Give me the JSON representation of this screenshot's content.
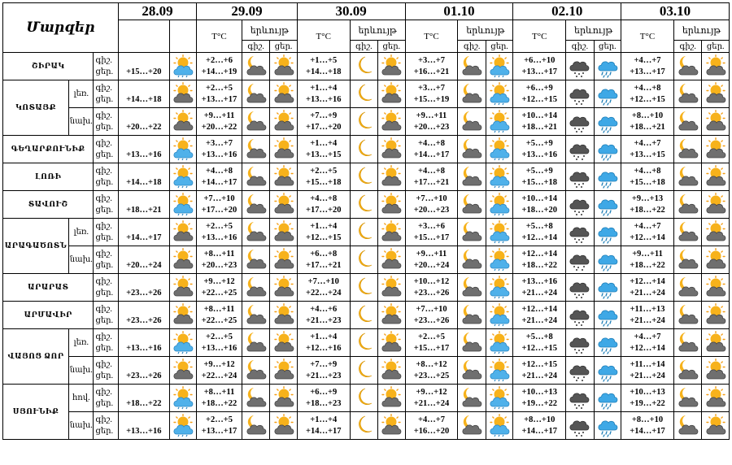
{
  "header": {
    "region_title": "Մարզեր",
    "dates": [
      "28.09",
      "29.09",
      "30.09",
      "01.10",
      "02.10",
      "03.10"
    ],
    "temp_label": "T°C",
    "phen_label": "երևույթ",
    "night_label": "գիշ.",
    "day_label": "ցեր."
  },
  "row_labels": {
    "night": "գիշ.",
    "day": "ցեր."
  },
  "regions": [
    {
      "name": "ՇԻՐԱԿ",
      "rows": [
        {
          "sub": "",
          "d0": {
            "temp": "+15…+20",
            "icon": "sun-cloud-rain-icon"
          },
          "days": [
            {
              "night": "+2…+6",
              "day": "+14…+19",
              "icon_night": "moon-cloud-icon",
              "icon_day": "sun-cloud-icon"
            },
            {
              "night": "+1…+5",
              "day": "+14…+18",
              "icon_night": "moon-icon",
              "icon_day": "sun-cloud-icon"
            },
            {
              "night": "+3…+7",
              "day": "+16…+21",
              "icon_night": "moon-cloud-icon",
              "icon_day": "sun-cloud-rain-icon"
            },
            {
              "night": "+6…+10",
              "day": "+13…+17",
              "icon_night": "cloud-rain-icon",
              "icon_day": "cloud-rain-blue-icon"
            },
            {
              "night": "+4…+7",
              "day": "+13…+17",
              "icon_night": "moon-cloud-icon",
              "icon_day": "sun-cloud-icon"
            }
          ]
        }
      ]
    },
    {
      "name": "ԿՈՏԱՅՔ",
      "rows": [
        {
          "sub": "լեռ.",
          "d0": {
            "temp": "+14…+18",
            "icon": "sun-cloud-icon"
          },
          "days": [
            {
              "night": "+2…+5",
              "day": "+13…+17",
              "icon_night": "moon-cloud-icon",
              "icon_day": "sun-cloud-icon"
            },
            {
              "night": "+1…+4",
              "day": "+13…+16",
              "icon_night": "moon-icon",
              "icon_day": "sun-cloud-icon"
            },
            {
              "night": "+3…+7",
              "day": "+15…+19",
              "icon_night": "moon-cloud-icon",
              "icon_day": "sun-cloud-rain-icon"
            },
            {
              "night": "+6…+9",
              "day": "+12…+15",
              "icon_night": "cloud-rain-icon",
              "icon_day": "cloud-rain-blue-icon"
            },
            {
              "night": "+4…+8",
              "day": "+12…+15",
              "icon_night": "moon-cloud-icon",
              "icon_day": "sun-cloud-icon"
            }
          ]
        },
        {
          "sub": "նախ.",
          "d0": {
            "temp": "+20…+22",
            "icon": "sun-cloud-icon"
          },
          "days": [
            {
              "night": "+9…+11",
              "day": "+20…+22",
              "icon_night": "moon-cloud-icon",
              "icon_day": "sun-cloud-icon"
            },
            {
              "night": "+7…+9",
              "day": "+17…+20",
              "icon_night": "moon-icon",
              "icon_day": "sun-cloud-icon"
            },
            {
              "night": "+9…+11",
              "day": "+20…+23",
              "icon_night": "moon-cloud-icon",
              "icon_day": "sun-cloud-rain-icon"
            },
            {
              "night": "+10…+14",
              "day": "+18…+21",
              "icon_night": "cloud-rain-icon",
              "icon_day": "cloud-rain-blue-icon"
            },
            {
              "night": "+8…+10",
              "day": "+18…+21",
              "icon_night": "moon-cloud-icon",
              "icon_day": "sun-cloud-icon"
            }
          ]
        }
      ]
    },
    {
      "name": "ԳԵՂԱՐՔՈՒՆԻՔ",
      "rows": [
        {
          "sub": "",
          "d0": {
            "temp": "+13…+16",
            "icon": "sun-cloud-rain-icon"
          },
          "days": [
            {
              "night": "+3…+7",
              "day": "+13…+16",
              "icon_night": "moon-cloud-icon",
              "icon_day": "sun-cloud-icon"
            },
            {
              "night": "+1…+4",
              "day": "+13…+15",
              "icon_night": "moon-icon",
              "icon_day": "sun-cloud-icon"
            },
            {
              "night": "+4…+8",
              "day": "+14…+17",
              "icon_night": "moon-cloud-icon",
              "icon_day": "sun-cloud-rain-icon"
            },
            {
              "night": "+5…+9",
              "day": "+13…+16",
              "icon_night": "cloud-storm-icon",
              "icon_day": "cloud-rain-blue-icon"
            },
            {
              "night": "+4…+7",
              "day": "+13…+15",
              "icon_night": "moon-cloud-icon",
              "icon_day": "sun-cloud-icon"
            }
          ]
        }
      ]
    },
    {
      "name": "ԼՈՌԻ",
      "rows": [
        {
          "sub": "",
          "d0": {
            "temp": "+14…+18",
            "icon": "sun-cloud-rain-icon"
          },
          "days": [
            {
              "night": "+4…+8",
              "day": "+14…+17",
              "icon_night": "moon-cloud-icon",
              "icon_day": "sun-cloud-icon"
            },
            {
              "night": "+2…+5",
              "day": "+15…+18",
              "icon_night": "moon-icon",
              "icon_day": "sun-cloud-icon"
            },
            {
              "night": "+4…+8",
              "day": "+17…+21",
              "icon_night": "moon-cloud-icon",
              "icon_day": "sun-cloud-rain-icon"
            },
            {
              "night": "+5…+9",
              "day": "+15…+18",
              "icon_night": "cloud-rain-icon",
              "icon_day": "cloud-rain-blue-icon"
            },
            {
              "night": "+4…+8",
              "day": "+15…+18",
              "icon_night": "moon-cloud-icon",
              "icon_day": "sun-cloud-icon"
            }
          ]
        }
      ]
    },
    {
      "name": "ՏԱՎՈՒՇ",
      "rows": [
        {
          "sub": "",
          "d0": {
            "temp": "+18…+21",
            "icon": "sun-cloud-rain-icon"
          },
          "days": [
            {
              "night": "+7…+10",
              "day": "+17…+20",
              "icon_night": "moon-cloud-icon",
              "icon_day": "sun-cloud-icon"
            },
            {
              "night": "+4…+8",
              "day": "+17…+20",
              "icon_night": "moon-icon",
              "icon_day": "sun-cloud-icon"
            },
            {
              "night": "+7…+10",
              "day": "+20…+23",
              "icon_night": "moon-cloud-icon",
              "icon_day": "sun-cloud-rain-icon"
            },
            {
              "night": "+10…+14",
              "day": "+18…+20",
              "icon_night": "cloud-rain-icon",
              "icon_day": "cloud-rain-blue-icon"
            },
            {
              "night": "+9…+13",
              "day": "+18…+22",
              "icon_night": "moon-cloud-icon",
              "icon_day": "sun-cloud-icon"
            }
          ]
        }
      ]
    },
    {
      "name": "ԱՐԱԳԱԾՈՏՆ",
      "rows": [
        {
          "sub": "լեռ.",
          "d0": {
            "temp": "+14…+17",
            "icon": "sun-cloud-icon"
          },
          "days": [
            {
              "night": "+2…+5",
              "day": "+13…+16",
              "icon_night": "moon-cloud-icon",
              "icon_day": "sun-cloud-icon"
            },
            {
              "night": "+1…+4",
              "day": "+12…+15",
              "icon_night": "moon-icon",
              "icon_day": "sun-cloud-icon"
            },
            {
              "night": "+3…+6",
              "day": "+15…+17",
              "icon_night": "moon-cloud-icon",
              "icon_day": "sun-cloud-rain-icon"
            },
            {
              "night": "+5…+8",
              "day": "+12…+14",
              "icon_night": "cloud-rain-icon",
              "icon_day": "cloud-rain-blue-icon"
            },
            {
              "night": "+4…+7",
              "day": "+12…+14",
              "icon_night": "moon-cloud-icon",
              "icon_day": "sun-cloud-icon"
            }
          ]
        },
        {
          "sub": "նախ.",
          "d0": {
            "temp": "+20…+24",
            "icon": "sun-cloud-icon"
          },
          "days": [
            {
              "night": "+8…+11",
              "day": "+20…+23",
              "icon_night": "moon-cloud-icon",
              "icon_day": "sun-cloud-icon"
            },
            {
              "night": "+6…+8",
              "day": "+17…+21",
              "icon_night": "moon-icon",
              "icon_day": "sun-cloud-icon"
            },
            {
              "night": "+9…+11",
              "day": "+20…+24",
              "icon_night": "moon-cloud-icon",
              "icon_day": "sun-cloud-rain-icon"
            },
            {
              "night": "+12…+14",
              "day": "+18…+22",
              "icon_night": "cloud-storm-icon",
              "icon_day": "cloud-rain-blue-icon"
            },
            {
              "night": "+9…+11",
              "day": "+18…+22",
              "icon_night": "moon-cloud-icon",
              "icon_day": "sun-cloud-icon"
            }
          ]
        }
      ]
    },
    {
      "name": "ԱՐԱՐԱՏ",
      "rows": [
        {
          "sub": "",
          "d0": {
            "temp": "+23…+26",
            "icon": "sun-cloud-icon"
          },
          "days": [
            {
              "night": "+9…+12",
              "day": "+22…+25",
              "icon_night": "moon-cloud-icon",
              "icon_day": "sun-cloud-icon"
            },
            {
              "night": "+7…+10",
              "day": "+22…+24",
              "icon_night": "moon-icon",
              "icon_day": "sun-cloud-icon"
            },
            {
              "night": "+10…+12",
              "day": "+23…+26",
              "icon_night": "moon-cloud-icon",
              "icon_day": "sun-cloud-rain-icon"
            },
            {
              "night": "+13…+16",
              "day": "+21…+24",
              "icon_night": "cloud-rain-icon",
              "icon_day": "cloud-rain-blue-icon"
            },
            {
              "night": "+12…+14",
              "day": "+21…+24",
              "icon_night": "moon-cloud-icon",
              "icon_day": "sun-cloud-icon"
            }
          ]
        }
      ]
    },
    {
      "name": "ԱՐՄԱՎԻՐ",
      "rows": [
        {
          "sub": "",
          "d0": {
            "temp": "+23…+26",
            "icon": "sun-cloud-icon"
          },
          "days": [
            {
              "night": "+8…+11",
              "day": "+22…+25",
              "icon_night": "moon-cloud-icon",
              "icon_day": "sun-cloud-icon"
            },
            {
              "night": "+4…+6",
              "day": "+21…+23",
              "icon_night": "moon-icon",
              "icon_day": "sun-cloud-icon"
            },
            {
              "night": "+7…+10",
              "day": "+23…+26",
              "icon_night": "moon-cloud-icon",
              "icon_day": "sun-cloud-rain-icon"
            },
            {
              "night": "+12…+14",
              "day": "+21…+24",
              "icon_night": "cloud-rain-icon",
              "icon_day": "cloud-rain-blue-icon"
            },
            {
              "night": "+11…+13",
              "day": "+21…+24",
              "icon_night": "moon-cloud-icon",
              "icon_day": "sun-cloud-icon"
            }
          ]
        }
      ]
    },
    {
      "name": "ՎԱՅՈՑ ՁՈՐ",
      "rows": [
        {
          "sub": "լեռ.",
          "d0": {
            "temp": "+13…+16",
            "icon": "sun-cloud-rain-icon"
          },
          "days": [
            {
              "night": "+2…+5",
              "day": "+13…+16",
              "icon_night": "moon-cloud-icon",
              "icon_day": "sun-cloud-icon"
            },
            {
              "night": "+1…+4",
              "day": "+12…+16",
              "icon_night": "moon-icon",
              "icon_day": "sun-cloud-icon"
            },
            {
              "night": "+2…+5",
              "day": "+15…+17",
              "icon_night": "moon-cloud-icon",
              "icon_day": "sun-cloud-rain-icon"
            },
            {
              "night": "+5…+8",
              "day": "+12…+15",
              "icon_night": "cloud-rain-icon",
              "icon_day": "cloud-rain-blue-icon"
            },
            {
              "night": "+4…+7",
              "day": "+12…+14",
              "icon_night": "moon-cloud-icon",
              "icon_day": "sun-cloud-icon"
            }
          ]
        },
        {
          "sub": "նախ.",
          "d0": {
            "temp": "+23…+26",
            "icon": "sun-cloud-icon"
          },
          "days": [
            {
              "night": "+9…+12",
              "day": "+22…+24",
              "icon_night": "moon-cloud-icon",
              "icon_day": "sun-cloud-icon"
            },
            {
              "night": "+7…+9",
              "day": "+21…+23",
              "icon_night": "moon-icon",
              "icon_day": "sun-cloud-icon"
            },
            {
              "night": "+8…+12",
              "day": "+23…+25",
              "icon_night": "moon-cloud-icon",
              "icon_day": "sun-cloud-rain-icon"
            },
            {
              "night": "+12…+15",
              "day": "+21…+24",
              "icon_night": "cloud-storm-icon",
              "icon_day": "cloud-rain-blue-icon"
            },
            {
              "night": "+11…+14",
              "day": "+21…+24",
              "icon_night": "moon-cloud-icon",
              "icon_day": "sun-cloud-icon"
            }
          ]
        }
      ]
    },
    {
      "name": "ՍՅՈՒՆԻՔ",
      "rows": [
        {
          "sub": "հով.",
          "d0": {
            "temp": "+18…+22",
            "icon": "sun-cloud-rain-icon"
          },
          "days": [
            {
              "night": "+8…+11",
              "day": "+18…+22",
              "icon_night": "moon-cloud-icon",
              "icon_day": "sun-cloud-icon"
            },
            {
              "night": "+6…+9",
              "day": "+18…+23",
              "icon_night": "moon-icon",
              "icon_day": "sun-cloud-icon"
            },
            {
              "night": "+9…+12",
              "day": "+21…+24",
              "icon_night": "moon-cloud-icon",
              "icon_day": "sun-cloud-rain-icon"
            },
            {
              "night": "+10…+13",
              "day": "+19…+22",
              "icon_night": "cloud-rain-icon",
              "icon_day": "cloud-rain-blue-icon"
            },
            {
              "night": "+10…+13",
              "day": "+19…+22",
              "icon_night": "moon-cloud-icon",
              "icon_day": "sun-cloud-icon"
            }
          ]
        },
        {
          "sub": "նախ.",
          "d0": {
            "temp": "+13…+16",
            "icon": "sun-cloud-rain-icon"
          },
          "days": [
            {
              "night": "+2…+5",
              "day": "+13…+17",
              "icon_night": "moon-cloud-icon",
              "icon_day": "sun-cloud-icon"
            },
            {
              "night": "+1…+4",
              "day": "+14…+17",
              "icon_night": "moon-icon",
              "icon_day": "sun-cloud-icon"
            },
            {
              "night": "+4…+7",
              "day": "+16…+20",
              "icon_night": "moon-cloud-icon",
              "icon_day": "sun-cloud-rain-icon"
            },
            {
              "night": "+8…+10",
              "day": "+14…+17",
              "icon_night": "cloud-rain-icon",
              "icon_day": "cloud-rain-blue-icon"
            },
            {
              "night": "+8…+10",
              "day": "+14…+17",
              "icon_night": "moon-cloud-icon",
              "icon_day": "sun-cloud-icon"
            }
          ]
        }
      ]
    }
  ]
}
